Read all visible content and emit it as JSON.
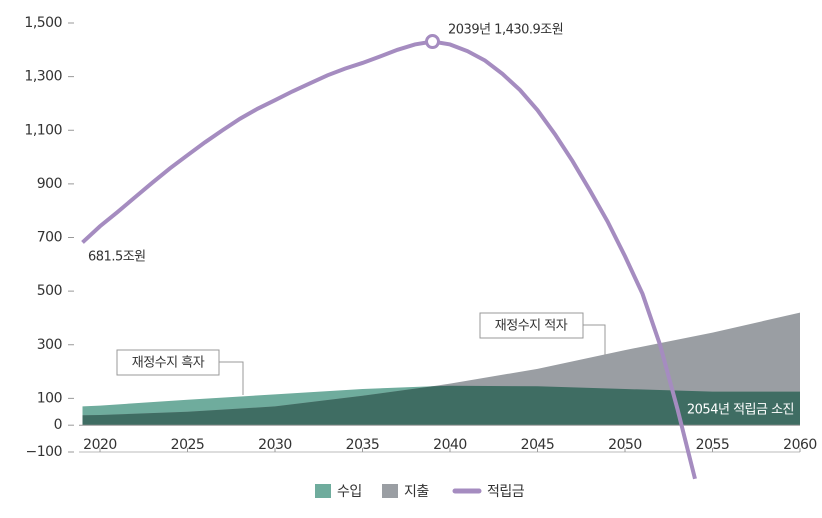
{
  "chart_data": {
    "type": "combo",
    "xlim": [
      2018.8,
      2060
    ],
    "xticks": [
      2020,
      2025,
      2030,
      2035,
      2040,
      2045,
      2050,
      2055,
      2060
    ],
    "ylim": [
      -100,
      1500
    ],
    "yticks": [
      {
        "value": -100,
        "label": "−100"
      },
      0,
      100,
      300,
      500,
      700,
      900,
      {
        "value": 1100,
        "label": "1,100"
      },
      {
        "value": 1300,
        "label": "1,300"
      },
      {
        "value": 1500,
        "label": "1,500"
      }
    ],
    "series": [
      {
        "name": "수입",
        "type": "area",
        "color": "#6fac9d",
        "overlap_color": "#3f6d63",
        "x": [
          2019,
          2020,
          2025,
          2030,
          2035,
          2039,
          2040,
          2045,
          2050,
          2055,
          2060
        ],
        "values": [
          70,
          73,
          95,
          115,
          135,
          145,
          147,
          145,
          135,
          125,
          125
        ]
      },
      {
        "name": "지출",
        "type": "area",
        "color": "#9a9ea3",
        "x": [
          2019,
          2020,
          2025,
          2030,
          2035,
          2039,
          2040,
          2045,
          2050,
          2055,
          2060
        ],
        "values": [
          37,
          38,
          50,
          70,
          110,
          145,
          155,
          210,
          280,
          345,
          420
        ]
      },
      {
        "name": "적립금",
        "type": "line",
        "color": "#a58cc0",
        "x": [
          2019,
          2020,
          2021,
          2022,
          2023,
          2024,
          2025,
          2026,
          2027,
          2028,
          2029,
          2030,
          2031,
          2032,
          2033,
          2034,
          2035,
          2036,
          2037,
          2038,
          2039,
          2040,
          2041,
          2042,
          2043,
          2044,
          2045,
          2046,
          2047,
          2048,
          2049,
          2050,
          2051,
          2052,
          2053,
          2054
        ],
        "values": [
          681.5,
          742,
          795,
          850,
          905,
          958,
          1007,
          1055,
          1100,
          1143,
          1180,
          1212,
          1245,
          1275,
          1305,
          1330,
          1351,
          1375,
          1400,
          1420,
          1430.9,
          1420,
          1395,
          1360,
          1310,
          1250,
          1175,
          1085,
          985,
          875,
          760,
          630,
          490,
          300,
          60,
          -200
        ]
      }
    ],
    "annotations": {
      "peak": "2039년 1,430.9조원",
      "start": "681.5조원",
      "surplus": "재정수지 흑자",
      "deficit": "재정수지 적자",
      "depletion": "2054년 적립금 소진"
    }
  }
}
